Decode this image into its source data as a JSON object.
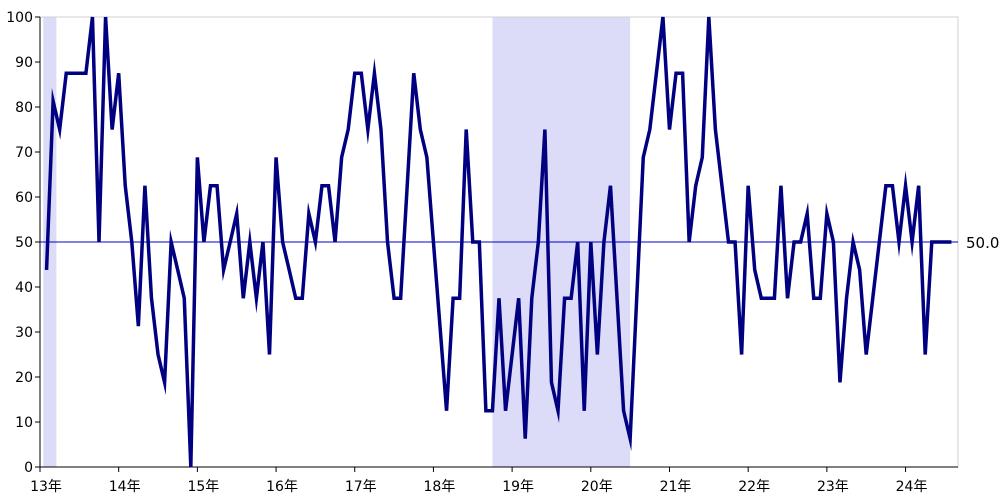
{
  "chart_data": {
    "type": "line",
    "title": "",
    "xlabel": "",
    "ylabel": "",
    "ylim": [
      0,
      100
    ],
    "y_ticks": [
      "0",
      "10",
      "20",
      "30",
      "40",
      "50",
      "60",
      "70",
      "80",
      "90",
      "100"
    ],
    "x_ticks": [
      {
        "label": "13年",
        "month": 0
      },
      {
        "label": "14年",
        "month": 12
      },
      {
        "label": "15年",
        "month": 24
      },
      {
        "label": "16年",
        "month": 36
      },
      {
        "label": "17年",
        "month": 48
      },
      {
        "label": "18年",
        "month": 60
      },
      {
        "label": "19年",
        "month": 72
      },
      {
        "label": "20年",
        "month": 84
      },
      {
        "label": "21年",
        "month": 96
      },
      {
        "label": "22年",
        "month": 108
      },
      {
        "label": "23年",
        "month": 120
      },
      {
        "label": "24年",
        "month": 132
      }
    ],
    "x_range_months": [
      0,
      140
    ],
    "grid": false,
    "reference_line": {
      "value": 50,
      "label": "50.0",
      "color": "#0000cc"
    },
    "shaded_periods": [
      {
        "start_month": 0.5,
        "end_month": 2.5
      },
      {
        "start_month": 69,
        "end_month": 90
      }
    ],
    "shade_color": "#dcdcf8",
    "series": [
      {
        "color": "#000080",
        "start_month": 1,
        "values": [
          43.8,
          81.3,
          75.0,
          87.5,
          87.5,
          87.5,
          87.5,
          100,
          50.0,
          100,
          75.0,
          87.5,
          62.5,
          50.0,
          31.3,
          62.5,
          37.5,
          25.0,
          18.8,
          50.0,
          43.8,
          37.5,
          0,
          68.8,
          50.0,
          62.5,
          62.5,
          43.8,
          50.0,
          56.3,
          37.5,
          50.0,
          37.5,
          50.0,
          25.0,
          68.8,
          50.0,
          43.8,
          37.5,
          37.5,
          56.3,
          50.0,
          62.5,
          62.5,
          50.0,
          68.8,
          75.0,
          87.5,
          87.5,
          75.0,
          87.5,
          75.0,
          50.0,
          37.5,
          37.5,
          62.5,
          87.5,
          75.0,
          68.8,
          50.0,
          31.3,
          12.5,
          37.5,
          37.5,
          75.0,
          50.0,
          50.0,
          12.5,
          12.5,
          37.5,
          12.5,
          25.0,
          37.5,
          6.3,
          37.5,
          50.0,
          75.0,
          18.8,
          12.5,
          37.5,
          37.5,
          50.0,
          12.5,
          50.0,
          25.0,
          50.0,
          62.5,
          37.5,
          12.5,
          6.3,
          37.5,
          68.8,
          75.0,
          87.5,
          100,
          75.0,
          87.5,
          87.5,
          50.0,
          62.5,
          68.8,
          100,
          75.0,
          62.5,
          50.0,
          50.0,
          25.0,
          62.5,
          43.8,
          37.5,
          37.5,
          37.5,
          62.5,
          37.5,
          50.0,
          50.0,
          56.3,
          37.5,
          37.5,
          56.3,
          50.0,
          18.8,
          37.5,
          50.0,
          43.8,
          25.0,
          37.5,
          50.0,
          62.5,
          62.5,
          50.0,
          62.5,
          50.0,
          62.5,
          25.0,
          50.0,
          50.0,
          50.0,
          50.0
        ]
      }
    ]
  }
}
